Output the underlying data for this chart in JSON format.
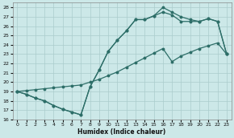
{
  "xlabel": "Humidex (Indice chaleur)",
  "bg_color": "#cce8e8",
  "grid_color": "#aacccc",
  "line_color": "#2d6e68",
  "xlim": [
    -0.5,
    23.5
  ],
  "ylim": [
    16,
    28.5
  ],
  "xticks": [
    0,
    1,
    2,
    3,
    4,
    5,
    6,
    7,
    8,
    9,
    10,
    11,
    12,
    13,
    14,
    15,
    16,
    17,
    18,
    19,
    20,
    21,
    22,
    23
  ],
  "yticks": [
    16,
    17,
    18,
    19,
    20,
    21,
    22,
    23,
    24,
    25,
    26,
    27,
    28
  ],
  "line1_x": [
    0,
    1,
    2,
    3,
    4,
    5,
    6,
    7,
    8,
    9,
    10,
    11,
    12,
    13,
    14,
    15,
    16,
    17,
    18,
    19,
    20,
    21,
    22,
    23
  ],
  "line1_y": [
    19.0,
    18.7,
    18.3,
    18.0,
    17.5,
    17.1,
    16.8,
    16.5,
    19.5,
    21.3,
    23.3,
    24.5,
    25.5,
    26.7,
    26.7,
    27.1,
    28.0,
    27.5,
    27.0,
    26.7,
    26.5,
    26.8,
    26.5,
    23.0
  ],
  "line2_x": [
    0,
    1,
    2,
    3,
    4,
    5,
    6,
    7,
    8,
    9,
    10,
    11,
    12,
    13,
    14,
    15,
    16,
    17,
    18,
    19,
    20,
    21,
    22,
    23
  ],
  "line2_y": [
    19.0,
    18.7,
    18.3,
    18.0,
    17.5,
    17.1,
    16.8,
    16.5,
    19.5,
    21.3,
    23.3,
    24.5,
    25.5,
    26.7,
    26.7,
    27.1,
    27.5,
    27.2,
    26.5,
    26.5,
    26.5,
    26.8,
    26.5,
    23.0
  ],
  "line3_x": [
    0,
    1,
    2,
    3,
    4,
    5,
    6,
    7,
    8,
    9,
    10,
    11,
    12,
    13,
    14,
    15,
    16,
    17,
    18,
    19,
    20,
    21,
    22,
    23
  ],
  "line3_y": [
    19.0,
    19.1,
    19.2,
    19.3,
    19.4,
    19.5,
    19.6,
    19.7,
    20.0,
    20.3,
    20.7,
    21.1,
    21.6,
    22.1,
    22.6,
    23.1,
    23.6,
    22.2,
    22.8,
    23.2,
    23.6,
    23.9,
    24.2,
    23.0
  ]
}
